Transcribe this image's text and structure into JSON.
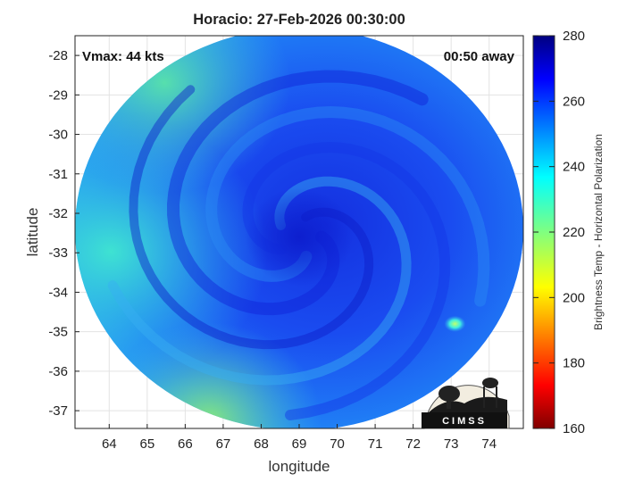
{
  "chart_data": {
    "type": "heatmap",
    "title": "Horacio: 27-Feb-2026 00:30:00",
    "xlabel": "longitude",
    "ylabel": "latitude",
    "xlim": [
      63.1,
      74.9
    ],
    "ylim": [
      -37.45,
      -27.5
    ],
    "x_ticks": [
      64,
      65,
      66,
      67,
      68,
      69,
      70,
      71,
      72,
      73,
      74
    ],
    "y_ticks": [
      -28,
      -29,
      -30,
      -31,
      -32,
      -33,
      -34,
      -35,
      -36,
      -37
    ],
    "grid": true,
    "annotations": {
      "top_left": "Vmax: 44 kts",
      "top_right": "00:50 away"
    },
    "colorbar": {
      "label": "Brightness Temp - Horizontal Polarization",
      "min": 160,
      "max": 280,
      "ticks": [
        160,
        180,
        200,
        220,
        240,
        260,
        280
      ],
      "colormap": "jet"
    },
    "swath": {
      "center_lon": 69.0,
      "center_lat": -32.4,
      "radius_lon": 5.9,
      "radius_lat": 5.1
    },
    "storm_center": {
      "lon": 69.0,
      "lat": -32.6
    },
    "values_description_samples": [
      {
        "lon": 69.0,
        "lat": -32.6,
        "value": 266
      },
      {
        "lon": 65.0,
        "lat": -34.5,
        "value": 236
      },
      {
        "lon": 66.5,
        "lat": -36.8,
        "value": 228
      },
      {
        "lon": 65.8,
        "lat": -29.0,
        "value": 240
      },
      {
        "lon": 73.1,
        "lat": -34.8,
        "value": 238
      },
      {
        "lon": 72.0,
        "lat": -30.0,
        "value": 254
      }
    ]
  },
  "logo": {
    "text": "CIMSS"
  }
}
